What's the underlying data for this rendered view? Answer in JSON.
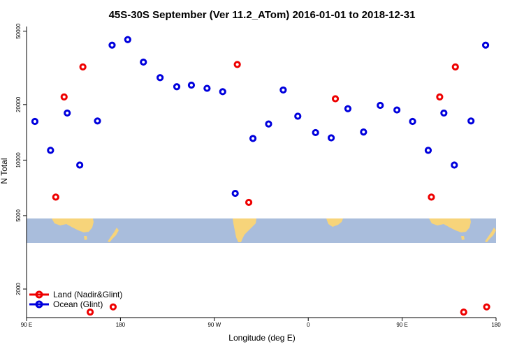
{
  "chart_data": {
    "type": "scatter",
    "title": "45S-30S September (Ver 11.2_ATom)   2016-01-01 to 2018-12-31",
    "xlabel": "Longitude (deg E)",
    "ylabel": "N Total",
    "xlim": [
      90,
      540
    ],
    "ylim": [
      1400,
      53000
    ],
    "yscale": "log",
    "grid": false,
    "legend_position": "bottom-left",
    "x_ticks": [
      {
        "value": 90,
        "label": "90 E"
      },
      {
        "value": 180,
        "label": "180"
      },
      {
        "value": 270,
        "label": "90 W"
      },
      {
        "value": 360,
        "label": "0"
      },
      {
        "value": 450,
        "label": "90 E"
      },
      {
        "value": 540,
        "label": "180"
      }
    ],
    "y_ticks": [
      {
        "value": 2000,
        "label": "2000"
      },
      {
        "value": 5000,
        "label": "5000"
      },
      {
        "value": 10000,
        "label": "10000"
      },
      {
        "value": 20000,
        "label": "20000"
      },
      {
        "value": 50000,
        "label": "50000"
      }
    ],
    "series": [
      {
        "name": "Land (Nadir&Glint)",
        "color": "#ee0000",
        "points": [
          {
            "x": 118,
            "y": 6300
          },
          {
            "x": 126,
            "y": 22000
          },
          {
            "x": 144,
            "y": 32000
          },
          {
            "x": 151,
            "y": 1500
          },
          {
            "x": 173,
            "y": 1600
          },
          {
            "x": 292,
            "y": 33000
          },
          {
            "x": 303,
            "y": 5900
          },
          {
            "x": 386,
            "y": 21500
          },
          {
            "x": 478,
            "y": 6300
          },
          {
            "x": 486,
            "y": 22000
          },
          {
            "x": 501,
            "y": 32000
          },
          {
            "x": 509,
            "y": 1500
          },
          {
            "x": 531,
            "y": 1600
          }
        ]
      },
      {
        "name": "Ocean (Glint)",
        "color": "#0000dd",
        "points": [
          {
            "x": 98,
            "y": 16200
          },
          {
            "x": 113,
            "y": 11300
          },
          {
            "x": 129,
            "y": 18000
          },
          {
            "x": 141,
            "y": 9400
          },
          {
            "x": 158,
            "y": 16300
          },
          {
            "x": 172,
            "y": 42000
          },
          {
            "x": 187,
            "y": 45000
          },
          {
            "x": 202,
            "y": 34000
          },
          {
            "x": 218,
            "y": 28000
          },
          {
            "x": 234,
            "y": 25000
          },
          {
            "x": 248,
            "y": 25500
          },
          {
            "x": 263,
            "y": 24500
          },
          {
            "x": 278,
            "y": 23500
          },
          {
            "x": 290,
            "y": 6600
          },
          {
            "x": 307,
            "y": 13100
          },
          {
            "x": 322,
            "y": 15700
          },
          {
            "x": 336,
            "y": 24000
          },
          {
            "x": 350,
            "y": 17300
          },
          {
            "x": 367,
            "y": 14100
          },
          {
            "x": 382,
            "y": 13200
          },
          {
            "x": 398,
            "y": 19000
          },
          {
            "x": 413,
            "y": 14200
          },
          {
            "x": 429,
            "y": 19800
          },
          {
            "x": 445,
            "y": 18700
          },
          {
            "x": 460,
            "y": 16200
          },
          {
            "x": 475,
            "y": 11300
          },
          {
            "x": 490,
            "y": 18000
          },
          {
            "x": 500,
            "y": 9400
          },
          {
            "x": 516,
            "y": 16300
          },
          {
            "x": 530,
            "y": 42000
          }
        ]
      }
    ]
  }
}
